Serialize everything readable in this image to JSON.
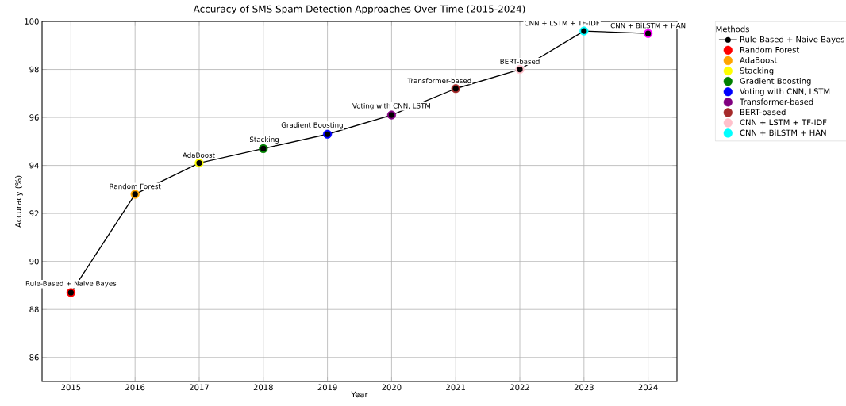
{
  "chart_data": {
    "type": "line",
    "title": "Accuracy of SMS Spam Detection Approaches Over Time (2015-2024)",
    "xlabel": "Year",
    "ylabel": "Accuracy (%)",
    "legend_title": "Methods",
    "x": [
      2015,
      2016,
      2017,
      2018,
      2019,
      2020,
      2021,
      2022,
      2023,
      2024
    ],
    "series": [
      {
        "name": "Rule-Based + Naive Bayes",
        "color": "#000000",
        "marker": "circle",
        "values": [
          88.7,
          92.8,
          94.1,
          94.7,
          95.3,
          96.1,
          97.2,
          98.0,
          99.6,
          99.5
        ]
      },
      {
        "name": "Random Forest",
        "type": "scatter",
        "color": "#ff0000",
        "marker": "circle",
        "x": [
          2015
        ],
        "values": [
          88.7
        ]
      },
      {
        "name": "AdaBoost",
        "type": "scatter",
        "color": "#ffa500",
        "marker": "circle",
        "x": [
          2016
        ],
        "values": [
          92.8
        ]
      },
      {
        "name": "Stacking",
        "type": "scatter",
        "color": "#ffff00",
        "marker": "circle",
        "x": [
          2017
        ],
        "values": [
          94.1
        ]
      },
      {
        "name": "Gradient Boosting",
        "type": "scatter",
        "color": "#008000",
        "marker": "circle",
        "x": [
          2018
        ],
        "values": [
          94.7
        ]
      },
      {
        "name": "Voting with CNN, LSTM",
        "type": "scatter",
        "color": "#0000ff",
        "marker": "circle",
        "x": [
          2019
        ],
        "values": [
          95.3
        ]
      },
      {
        "name": "Transformer-based",
        "type": "scatter",
        "color": "#800080",
        "marker": "circle",
        "x": [
          2020
        ],
        "values": [
          96.1
        ]
      },
      {
        "name": "BERT-based",
        "type": "scatter",
        "color": "#a52a2a",
        "marker": "circle",
        "x": [
          2021
        ],
        "values": [
          97.2
        ]
      },
      {
        "name": "CNN + LSTM + TF-IDF",
        "type": "scatter",
        "color": "#ffc0cb",
        "marker": "circle",
        "x": [
          2022
        ],
        "values": [
          98.0
        ]
      },
      {
        "name": "CNN + BiLSTM + HAN",
        "type": "scatter",
        "color": "#00ffff",
        "marker": "circle",
        "x": [
          2023
        ],
        "values": [
          99.6
        ]
      },
      {
        "type": "scatter",
        "color": "#ff00ff",
        "marker": "circle",
        "x": [
          2024
        ],
        "values": [
          99.5
        ]
      }
    ],
    "annotations": [
      {
        "text": "Rule-Based + Naive Bayes",
        "x": 2015,
        "y": 88.7
      },
      {
        "text": "Random Forest",
        "x": 2016,
        "y": 92.8
      },
      {
        "text": "AdaBoost",
        "x": 2017,
        "y": 94.1
      },
      {
        "text": "Stacking",
        "x": 2018,
        "y": 94.7
      },
      {
        "text": "Gradient Boosting",
        "x": 2019,
        "y": 95.3
      },
      {
        "text": "Voting with CNN, LSTM",
        "x": 2020,
        "y": 96.1
      },
      {
        "text": "Transformer-based",
        "x": 2021,
        "y": 97.2
      },
      {
        "text": "BERT-based",
        "x": 2022,
        "y": 98.0
      },
      {
        "text": "CNN + LSTM + TF-IDF",
        "x": 2023,
        "y": 99.6
      },
      {
        "text": "CNN + BiLSTM + HAN",
        "x": 2024,
        "y": 99.5
      }
    ],
    "xlim": [
      2014.55,
      2024.45
    ],
    "ylim": [
      85,
      100
    ],
    "xticks": [
      2015,
      2016,
      2017,
      2018,
      2019,
      2020,
      2021,
      2022,
      2023,
      2024
    ],
    "yticks": [
      86,
      88,
      90,
      92,
      94,
      96,
      98,
      100
    ],
    "grid": true,
    "legend": "top right"
  }
}
